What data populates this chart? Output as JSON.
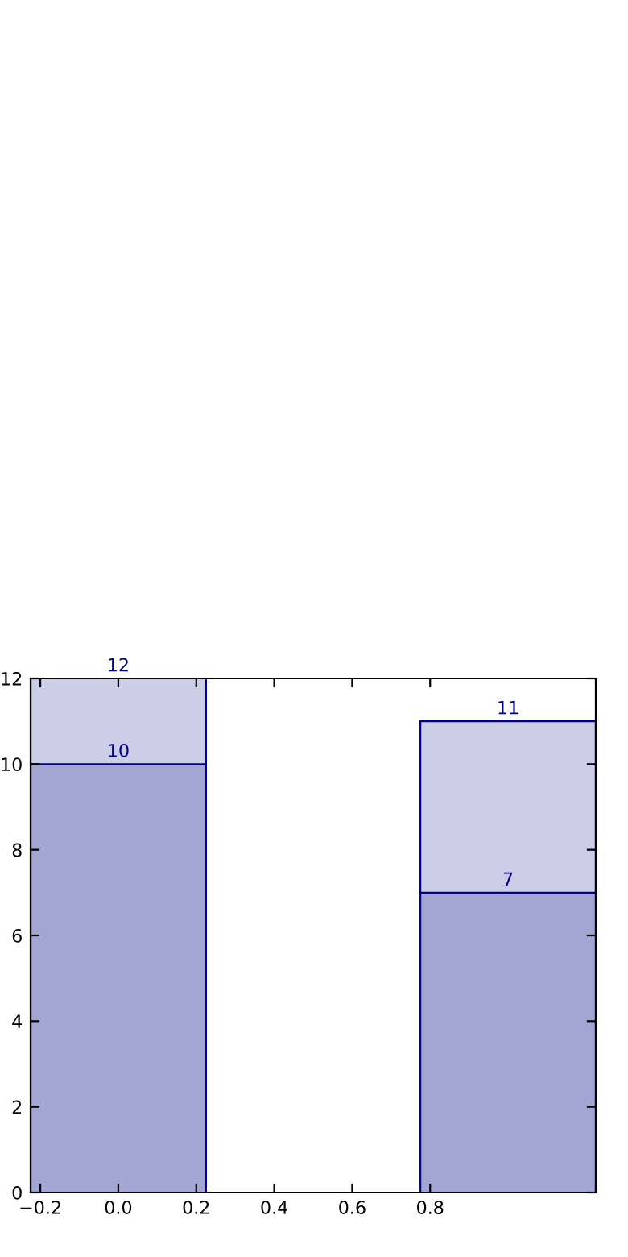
{
  "chart_data": {
    "type": "bar",
    "stacked": true,
    "x": [
      0,
      1
    ],
    "series": [
      {
        "color": "#a3a5d3",
        "values": [
          10,
          7
        ],
        "value_labels": [
          "10",
          "7"
        ]
      },
      {
        "color": "#cccde6",
        "values": [
          2,
          4
        ]
      }
    ],
    "totals": [
      "12",
      "11"
    ],
    "xlim": [
      -0.225,
      1.225
    ],
    "xticks": [
      {
        "value": -0.2,
        "label": "−0.2"
      },
      {
        "value": 0,
        "label": "0.0"
      },
      {
        "value": 0.2,
        "label": "0.2"
      },
      {
        "value": 0.4,
        "label": "0.4"
      },
      {
        "value": 0.6,
        "label": "0.6"
      },
      {
        "value": 0.8,
        "label": "0.8"
      }
    ],
    "ylim": [
      0,
      12
    ],
    "yticks": [
      0,
      2,
      4,
      6,
      8,
      10,
      12
    ],
    "grid": false
  }
}
